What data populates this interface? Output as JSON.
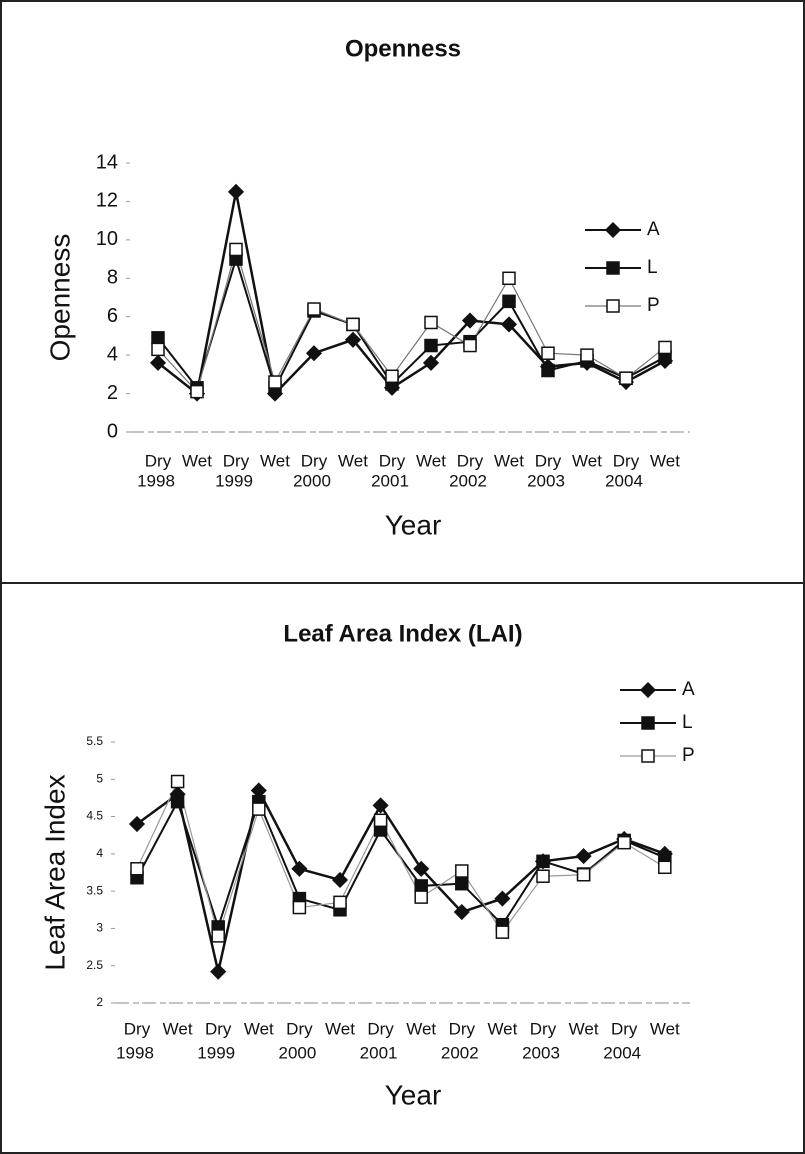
{
  "chart_data": [
    {
      "type": "line",
      "title": "Openness",
      "y_label": "Openness",
      "x_label": "Year",
      "categories": [
        "Dry",
        "Wet",
        "Dry",
        "Wet",
        "Dry",
        "Wet",
        "Dry",
        "Wet",
        "Dry",
        "Wet",
        "Dry",
        "Wet",
        "Dry",
        "Wet"
      ],
      "groups": [
        "1998",
        "1999",
        "2000",
        "2001",
        "2002",
        "2003",
        "2004"
      ],
      "ylim": [
        0,
        14
      ],
      "yticks": [
        0,
        2,
        4,
        6,
        8,
        10,
        12,
        14
      ],
      "legend": "right",
      "series": [
        {
          "name": "A",
          "color": "#111111",
          "marker": "diamond",
          "marker_fill": "#111111",
          "values": [
            3.6,
            2.0,
            12.5,
            2.0,
            4.1,
            4.8,
            2.3,
            3.6,
            5.8,
            5.6,
            3.4,
            3.6,
            2.6,
            3.7
          ]
        },
        {
          "name": "L",
          "color": "#111111",
          "marker": "square",
          "marker_fill": "#111111",
          "values": [
            4.9,
            2.3,
            9.0,
            2.3,
            6.3,
            5.6,
            2.5,
            4.5,
            4.7,
            6.8,
            3.2,
            3.7,
            2.8,
            3.9
          ]
        },
        {
          "name": "P",
          "color": "#777777",
          "marker": "square",
          "marker_fill": "#ffffff",
          "values": [
            4.3,
            2.1,
            9.5,
            2.6,
            6.4,
            5.6,
            2.9,
            5.7,
            4.5,
            8.0,
            4.1,
            4.0,
            2.8,
            4.4
          ]
        }
      ]
    },
    {
      "type": "line",
      "title": "Leaf Area Index (LAI)",
      "y_label": "Leaf Area Index",
      "x_label": "Year",
      "categories": [
        "Dry",
        "Wet",
        "Dry",
        "Wet",
        "Dry",
        "Wet",
        "Dry",
        "Wet",
        "Dry",
        "Wet",
        "Dry",
        "Wet",
        "Dry",
        "Wet"
      ],
      "groups": [
        "1998",
        "1999",
        "2000",
        "2001",
        "2002",
        "2003",
        "2004"
      ],
      "ylim": [
        2,
        5.5
      ],
      "yticks": [
        2,
        2.5,
        3,
        3.5,
        4,
        4.5,
        5,
        5.5
      ],
      "legend": "top-right",
      "series": [
        {
          "name": "A",
          "color": "#111111",
          "marker": "diamond",
          "marker_fill": "#111111",
          "values": [
            4.4,
            4.8,
            2.42,
            4.85,
            3.8,
            3.65,
            4.65,
            3.8,
            3.22,
            3.4,
            3.9,
            3.97,
            4.2,
            4.0
          ]
        },
        {
          "name": "L",
          "color": "#111111",
          "marker": "square",
          "marker_fill": "#111111",
          "values": [
            3.68,
            4.7,
            3.02,
            4.7,
            3.4,
            3.25,
            4.32,
            3.57,
            3.6,
            3.05,
            3.9,
            3.73,
            4.18,
            3.95
          ]
        },
        {
          "name": "P",
          "color": "#999999",
          "marker": "square",
          "marker_fill": "#ffffff",
          "values": [
            3.8,
            4.97,
            2.9,
            4.6,
            3.28,
            3.35,
            4.45,
            3.42,
            3.77,
            2.95,
            3.7,
            3.72,
            4.15,
            3.82
          ]
        }
      ]
    }
  ]
}
